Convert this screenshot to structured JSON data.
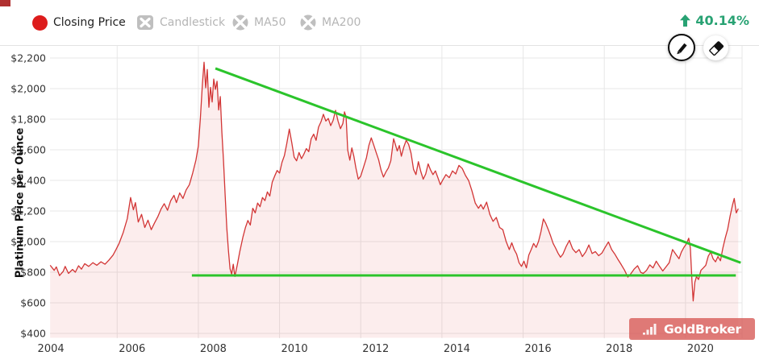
{
  "header": {
    "legend": [
      {
        "label": "Closing Price",
        "active": true
      },
      {
        "label": "Candlestick",
        "active": false
      },
      {
        "label": "MA50",
        "active": false
      },
      {
        "label": "MA200",
        "active": false
      }
    ],
    "change": {
      "label": "40.14%",
      "direction": "up"
    }
  },
  "watermark": {
    "brand": "GoldBroker"
  },
  "colors": {
    "price_red": "#d23535",
    "dot_red": "#dd1c1c",
    "area_pink": "rgba(221,75,75,0.10)",
    "trend_green": "#2bc42b",
    "change_green": "#28a273",
    "muted_gray": "#b5b5b5",
    "grid_gray": "#e7e7e7",
    "tick_text": "#333333"
  },
  "chart_data": {
    "type": "line",
    "title": "",
    "xlabel": "",
    "ylabel": "Platinum Price per Ounce",
    "grid": true,
    "x_range": [
      2004.35,
      2021.4
    ],
    "y_range": [
      400,
      2200
    ],
    "x_tick_years": [
      2004,
      2006,
      2008,
      2010,
      2012,
      2014,
      2016,
      2018,
      2020
    ],
    "x_tick_labels": [
      "2004",
      "2006",
      "2008",
      "2010",
      "2012",
      "2014",
      "2016",
      "2018",
      "2020"
    ],
    "y_tick_values": [
      400,
      600,
      800,
      1000,
      1200,
      1400,
      1600,
      1800,
      2000,
      2200
    ],
    "y_tick_labels": [
      "$400",
      "$600",
      "$800",
      "$1,000",
      "$1,200",
      "$1,400",
      "$1,600",
      "$1,800",
      "$2,000",
      "$2,200"
    ],
    "change_pct": "40.14%",
    "series": [
      {
        "name": "Closing Price",
        "color": "#d23535",
        "points": [
          [
            2004.35,
            845
          ],
          [
            2004.45,
            812
          ],
          [
            2004.5,
            835
          ],
          [
            2004.58,
            778
          ],
          [
            2004.67,
            805
          ],
          [
            2004.72,
            838
          ],
          [
            2004.8,
            792
          ],
          [
            2004.9,
            818
          ],
          [
            2004.97,
            800
          ],
          [
            2005.05,
            842
          ],
          [
            2005.12,
            820
          ],
          [
            2005.2,
            856
          ],
          [
            2005.3,
            838
          ],
          [
            2005.4,
            862
          ],
          [
            2005.5,
            845
          ],
          [
            2005.6,
            868
          ],
          [
            2005.7,
            852
          ],
          [
            2005.8,
            880
          ],
          [
            2005.9,
            912
          ],
          [
            2005.97,
            948
          ],
          [
            2006.05,
            990
          ],
          [
            2006.15,
            1060
          ],
          [
            2006.25,
            1150
          ],
          [
            2006.33,
            1288
          ],
          [
            2006.4,
            1208
          ],
          [
            2006.45,
            1255
          ],
          [
            2006.52,
            1128
          ],
          [
            2006.6,
            1178
          ],
          [
            2006.68,
            1092
          ],
          [
            2006.76,
            1140
          ],
          [
            2006.84,
            1078
          ],
          [
            2006.92,
            1122
          ],
          [
            2007.0,
            1162
          ],
          [
            2007.08,
            1212
          ],
          [
            2007.16,
            1248
          ],
          [
            2007.24,
            1205
          ],
          [
            2007.32,
            1268
          ],
          [
            2007.4,
            1302
          ],
          [
            2007.46,
            1255
          ],
          [
            2007.54,
            1318
          ],
          [
            2007.62,
            1282
          ],
          [
            2007.7,
            1338
          ],
          [
            2007.78,
            1372
          ],
          [
            2007.86,
            1448
          ],
          [
            2007.94,
            1532
          ],
          [
            2008.0,
            1625
          ],
          [
            2008.05,
            1805
          ],
          [
            2008.1,
            2035
          ],
          [
            2008.14,
            2172
          ],
          [
            2008.18,
            2005
          ],
          [
            2008.22,
            2125
          ],
          [
            2008.26,
            1878
          ],
          [
            2008.3,
            2008
          ],
          [
            2008.34,
            1912
          ],
          [
            2008.38,
            2062
          ],
          [
            2008.42,
            1995
          ],
          [
            2008.46,
            2048
          ],
          [
            2008.5,
            1860
          ],
          [
            2008.54,
            1948
          ],
          [
            2008.58,
            1712
          ],
          [
            2008.62,
            1528
          ],
          [
            2008.66,
            1308
          ],
          [
            2008.7,
            1088
          ],
          [
            2008.74,
            942
          ],
          [
            2008.78,
            822
          ],
          [
            2008.82,
            788
          ],
          [
            2008.86,
            852
          ],
          [
            2008.9,
            772
          ],
          [
            2008.96,
            848
          ],
          [
            2009.02,
            935
          ],
          [
            2009.1,
            1032
          ],
          [
            2009.16,
            1092
          ],
          [
            2009.22,
            1138
          ],
          [
            2009.28,
            1108
          ],
          [
            2009.34,
            1218
          ],
          [
            2009.4,
            1188
          ],
          [
            2009.46,
            1252
          ],
          [
            2009.52,
            1228
          ],
          [
            2009.58,
            1288
          ],
          [
            2009.64,
            1268
          ],
          [
            2009.7,
            1325
          ],
          [
            2009.76,
            1298
          ],
          [
            2009.82,
            1388
          ],
          [
            2009.88,
            1428
          ],
          [
            2009.94,
            1465
          ],
          [
            2010.0,
            1448
          ],
          [
            2010.06,
            1518
          ],
          [
            2010.12,
            1562
          ],
          [
            2010.18,
            1642
          ],
          [
            2010.24,
            1735
          ],
          [
            2010.3,
            1648
          ],
          [
            2010.36,
            1552
          ],
          [
            2010.42,
            1528
          ],
          [
            2010.48,
            1582
          ],
          [
            2010.54,
            1542
          ],
          [
            2010.6,
            1572
          ],
          [
            2010.66,
            1608
          ],
          [
            2010.72,
            1588
          ],
          [
            2010.78,
            1672
          ],
          [
            2010.84,
            1702
          ],
          [
            2010.9,
            1662
          ],
          [
            2010.96,
            1748
          ],
          [
            2011.02,
            1782
          ],
          [
            2011.08,
            1832
          ],
          [
            2011.14,
            1788
          ],
          [
            2011.2,
            1805
          ],
          [
            2011.26,
            1758
          ],
          [
            2011.32,
            1792
          ],
          [
            2011.38,
            1858
          ],
          [
            2011.44,
            1788
          ],
          [
            2011.5,
            1738
          ],
          [
            2011.56,
            1772
          ],
          [
            2011.6,
            1848
          ],
          [
            2011.64,
            1815
          ],
          [
            2011.68,
            1598
          ],
          [
            2011.73,
            1532
          ],
          [
            2011.78,
            1612
          ],
          [
            2011.83,
            1558
          ],
          [
            2011.88,
            1482
          ],
          [
            2011.94,
            1408
          ],
          [
            2012.0,
            1428
          ],
          [
            2012.07,
            1488
          ],
          [
            2012.14,
            1548
          ],
          [
            2012.2,
            1628
          ],
          [
            2012.26,
            1678
          ],
          [
            2012.32,
            1632
          ],
          [
            2012.38,
            1582
          ],
          [
            2012.44,
            1535
          ],
          [
            2012.5,
            1468
          ],
          [
            2012.56,
            1422
          ],
          [
            2012.62,
            1455
          ],
          [
            2012.68,
            1482
          ],
          [
            2012.74,
            1528
          ],
          [
            2012.81,
            1672
          ],
          [
            2012.85,
            1638
          ],
          [
            2012.9,
            1592
          ],
          [
            2012.95,
            1628
          ],
          [
            2013.0,
            1558
          ],
          [
            2013.06,
            1618
          ],
          [
            2013.12,
            1662
          ],
          [
            2013.18,
            1635
          ],
          [
            2013.24,
            1578
          ],
          [
            2013.3,
            1472
          ],
          [
            2013.36,
            1438
          ],
          [
            2013.42,
            1522
          ],
          [
            2013.48,
            1458
          ],
          [
            2013.54,
            1408
          ],
          [
            2013.6,
            1442
          ],
          [
            2013.66,
            1508
          ],
          [
            2013.72,
            1468
          ],
          [
            2013.78,
            1438
          ],
          [
            2013.84,
            1462
          ],
          [
            2013.9,
            1418
          ],
          [
            2013.96,
            1372
          ],
          [
            2014.02,
            1402
          ],
          [
            2014.1,
            1438
          ],
          [
            2014.18,
            1418
          ],
          [
            2014.26,
            1462
          ],
          [
            2014.34,
            1442
          ],
          [
            2014.42,
            1498
          ],
          [
            2014.5,
            1478
          ],
          [
            2014.58,
            1432
          ],
          [
            2014.66,
            1398
          ],
          [
            2014.74,
            1332
          ],
          [
            2014.82,
            1252
          ],
          [
            2014.9,
            1218
          ],
          [
            2014.96,
            1242
          ],
          [
            2015.02,
            1212
          ],
          [
            2015.1,
            1258
          ],
          [
            2015.18,
            1178
          ],
          [
            2015.26,
            1132
          ],
          [
            2015.34,
            1158
          ],
          [
            2015.42,
            1092
          ],
          [
            2015.5,
            1078
          ],
          [
            2015.58,
            1002
          ],
          [
            2015.66,
            948
          ],
          [
            2015.72,
            992
          ],
          [
            2015.78,
            948
          ],
          [
            2015.84,
            918
          ],
          [
            2015.9,
            862
          ],
          [
            2015.96,
            838
          ],
          [
            2016.02,
            872
          ],
          [
            2016.08,
            828
          ],
          [
            2016.14,
            912
          ],
          [
            2016.2,
            948
          ],
          [
            2016.26,
            988
          ],
          [
            2016.32,
            962
          ],
          [
            2016.38,
            1002
          ],
          [
            2016.44,
            1065
          ],
          [
            2016.5,
            1148
          ],
          [
            2016.56,
            1118
          ],
          [
            2016.62,
            1078
          ],
          [
            2016.68,
            1035
          ],
          [
            2016.74,
            988
          ],
          [
            2016.8,
            958
          ],
          [
            2016.86,
            925
          ],
          [
            2016.92,
            898
          ],
          [
            2016.98,
            918
          ],
          [
            2017.06,
            968
          ],
          [
            2017.14,
            1008
          ],
          [
            2017.22,
            952
          ],
          [
            2017.3,
            928
          ],
          [
            2017.38,
            948
          ],
          [
            2017.46,
            902
          ],
          [
            2017.54,
            932
          ],
          [
            2017.62,
            978
          ],
          [
            2017.7,
            922
          ],
          [
            2017.78,
            935
          ],
          [
            2017.86,
            908
          ],
          [
            2017.94,
            925
          ],
          [
            2018.02,
            962
          ],
          [
            2018.1,
            998
          ],
          [
            2018.18,
            948
          ],
          [
            2018.26,
            918
          ],
          [
            2018.34,
            882
          ],
          [
            2018.42,
            848
          ],
          [
            2018.5,
            812
          ],
          [
            2018.58,
            768
          ],
          [
            2018.66,
            792
          ],
          [
            2018.74,
            822
          ],
          [
            2018.82,
            842
          ],
          [
            2018.9,
            798
          ],
          [
            2018.96,
            792
          ],
          [
            2019.04,
            812
          ],
          [
            2019.12,
            848
          ],
          [
            2019.2,
            828
          ],
          [
            2019.28,
            872
          ],
          [
            2019.36,
            838
          ],
          [
            2019.44,
            808
          ],
          [
            2019.52,
            835
          ],
          [
            2019.6,
            862
          ],
          [
            2019.68,
            948
          ],
          [
            2019.76,
            918
          ],
          [
            2019.84,
            888
          ],
          [
            2019.9,
            932
          ],
          [
            2019.96,
            962
          ],
          [
            2020.02,
            985
          ],
          [
            2020.08,
            1022
          ],
          [
            2020.12,
            958
          ],
          [
            2020.16,
            742
          ],
          [
            2020.19,
            612
          ],
          [
            2020.23,
            735
          ],
          [
            2020.27,
            772
          ],
          [
            2020.32,
            752
          ],
          [
            2020.38,
            812
          ],
          [
            2020.44,
            828
          ],
          [
            2020.5,
            845
          ],
          [
            2020.56,
            905
          ],
          [
            2020.62,
            932
          ],
          [
            2020.68,
            888
          ],
          [
            2020.74,
            868
          ],
          [
            2020.8,
            902
          ],
          [
            2020.86,
            875
          ],
          [
            2020.92,
            958
          ],
          [
            2020.98,
            1025
          ],
          [
            2021.04,
            1082
          ],
          [
            2021.1,
            1168
          ],
          [
            2021.16,
            1242
          ],
          [
            2021.2,
            1282
          ],
          [
            2021.25,
            1188
          ],
          [
            2021.3,
            1215
          ]
        ]
      }
    ],
    "annotations": [
      {
        "name": "descending-resistance-trendline",
        "color": "#2bc42b",
        "points": [
          [
            2008.42,
            2132
          ],
          [
            2021.36,
            862
          ]
        ]
      },
      {
        "name": "horizontal-support-line",
        "color": "#2bc42b",
        "points": [
          [
            2007.84,
            779
          ],
          [
            2021.24,
            779
          ]
        ]
      }
    ]
  }
}
